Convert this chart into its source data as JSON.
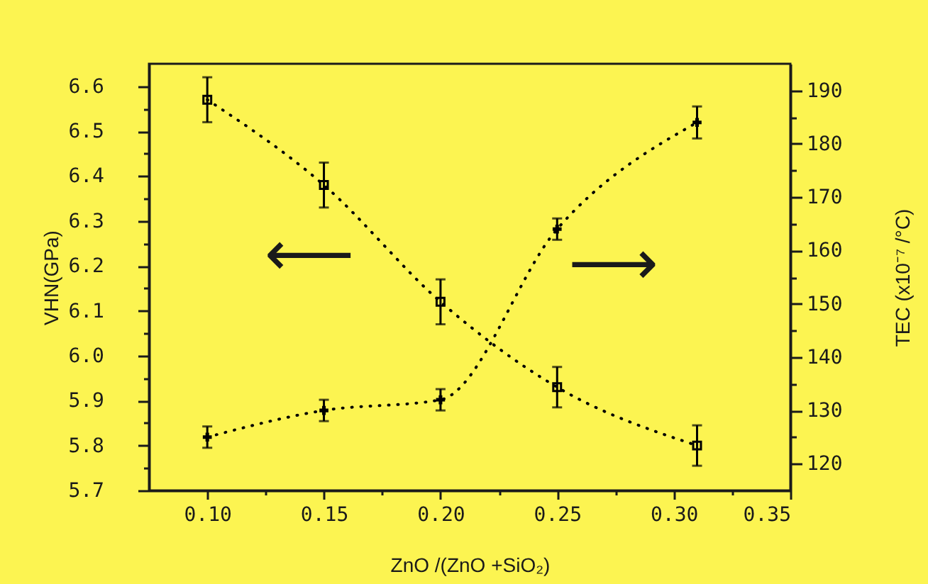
{
  "chart_data": {
    "type": "line",
    "xlabel": "ZnO /(ZnO +SiO₂)",
    "ylabel": "VHN(GPa)",
    "y2label": "TEC (x10⁻⁷ /°C)",
    "x": [
      0.1,
      0.15,
      0.2,
      0.25,
      0.31
    ],
    "series": [
      {
        "color": "#000000",
        "values": [
          6.57,
          6.38,
          6.12,
          5.93,
          5.8
        ],
        "errors": [
          0.05,
          0.05,
          0.05,
          0.045,
          0.045
        ],
        "marker": "square",
        "line_style": "dotted"
      },
      {
        "color": "#000000",
        "values": [
          125,
          130,
          132,
          164,
          184
        ],
        "errors": [
          2,
          2,
          2,
          2,
          3
        ],
        "marker": "cross",
        "line_style": "dotted",
        "axis": "y2"
      }
    ],
    "xlim": [
      0.075,
      0.35
    ],
    "xticks": [
      {
        "value": 0.1,
        "label": "0.10"
      },
      {
        "value": 0.125,
        "label": null
      },
      0.15,
      {
        "value": 0.175,
        "label": null
      },
      {
        "value": 0.2,
        "label": "0.20"
      },
      {
        "value": 0.225,
        "label": null
      },
      0.25,
      {
        "value": 0.275,
        "label": null
      },
      {
        "value": 0.3,
        "label": "0.30"
      },
      {
        "value": 0.325,
        "label": null
      },
      0.35
    ],
    "ylim": [
      5.7,
      6.65
    ],
    "yticks": [
      5.7,
      {
        "value": 5.75,
        "label": null
      },
      5.8,
      {
        "value": 5.85,
        "label": null
      },
      5.9,
      {
        "value": 5.95,
        "label": null
      },
      {
        "value": 6.0,
        "label": "6.0"
      },
      {
        "value": 6.05,
        "label": null
      },
      6.1,
      {
        "value": 6.15,
        "label": null
      },
      6.2,
      {
        "value": 6.25,
        "label": null
      },
      6.3,
      {
        "value": 6.35,
        "label": null
      },
      6.4,
      {
        "value": 6.45,
        "label": null
      },
      6.5,
      {
        "value": 6.55,
        "label": null
      },
      6.6
    ],
    "y2lim": [
      115,
      195
    ],
    "y2ticks": [
      120,
      {
        "value": 125,
        "label": null
      },
      130,
      {
        "value": 135,
        "label": null
      },
      140,
      {
        "value": 145,
        "label": null
      },
      150,
      {
        "value": 155,
        "label": null
      },
      160,
      {
        "value": 165,
        "label": null
      },
      170,
      {
        "value": 175,
        "label": null
      },
      180,
      {
        "value": 185,
        "label": null
      },
      190
    ],
    "annotations": [
      "⟵",
      "⟶"
    ]
  }
}
